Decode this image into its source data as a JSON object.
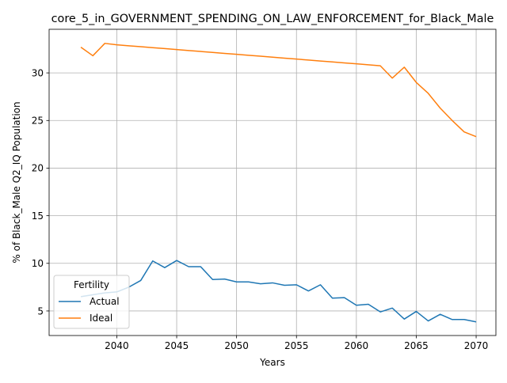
{
  "chart_data": {
    "type": "line",
    "title": "core_5_in_GOVERNMENT_SPENDING_ON_LAW_ENFORCEMENT_for_Black_Male",
    "xlabel": "Years",
    "ylabel": "% of Black_Male Q2_IQ Population",
    "xlim": [
      2034.35,
      2071.65
    ],
    "ylim": [
      2.42,
      34.58
    ],
    "xticks": [
      2040,
      2045,
      2050,
      2055,
      2060,
      2065,
      2070
    ],
    "yticks": [
      5,
      10,
      15,
      20,
      25,
      30
    ],
    "grid": true,
    "legend": {
      "title": "Fertility",
      "position": "lower-left"
    },
    "series": [
      {
        "name": "Actual",
        "color": "#1f77b4",
        "x": [
          2037,
          2038,
          2039,
          2040,
          2041,
          2042,
          2043,
          2044,
          2045,
          2046,
          2047,
          2048,
          2049,
          2050,
          2051,
          2052,
          2053,
          2054,
          2055,
          2056,
          2057,
          2058,
          2059,
          2060,
          2061,
          2062,
          2063,
          2064,
          2065,
          2066,
          2067,
          2068,
          2069,
          2070
        ],
        "values": [
          6.5,
          6.7,
          6.9,
          7.0,
          7.5,
          8.2,
          10.25,
          9.55,
          10.3,
          9.65,
          9.65,
          8.3,
          8.35,
          8.05,
          8.05,
          7.85,
          7.95,
          7.7,
          7.75,
          7.1,
          7.75,
          6.35,
          6.4,
          5.6,
          5.7,
          4.9,
          5.3,
          4.15,
          4.95,
          3.95,
          4.65,
          4.1,
          4.1,
          3.85
        ]
      },
      {
        "name": "Ideal",
        "color": "#ff7f0e",
        "x": [
          2037,
          2038,
          2039,
          2040,
          2041,
          2042,
          2043,
          2044,
          2045,
          2046,
          2047,
          2048,
          2049,
          2050,
          2051,
          2052,
          2053,
          2054,
          2055,
          2056,
          2057,
          2058,
          2059,
          2060,
          2061,
          2062,
          2063,
          2064,
          2065,
          2066,
          2067,
          2068,
          2069,
          2070
        ],
        "values": [
          32.7,
          31.8,
          33.1,
          32.95,
          32.85,
          32.75,
          32.65,
          32.55,
          32.45,
          32.35,
          32.25,
          32.15,
          32.05,
          31.95,
          31.85,
          31.75,
          31.65,
          31.55,
          31.45,
          31.35,
          31.25,
          31.15,
          31.05,
          30.95,
          30.85,
          30.75,
          29.45,
          30.6,
          29.0,
          27.85,
          26.3,
          25.0,
          23.8,
          23.3
        ]
      }
    ]
  }
}
